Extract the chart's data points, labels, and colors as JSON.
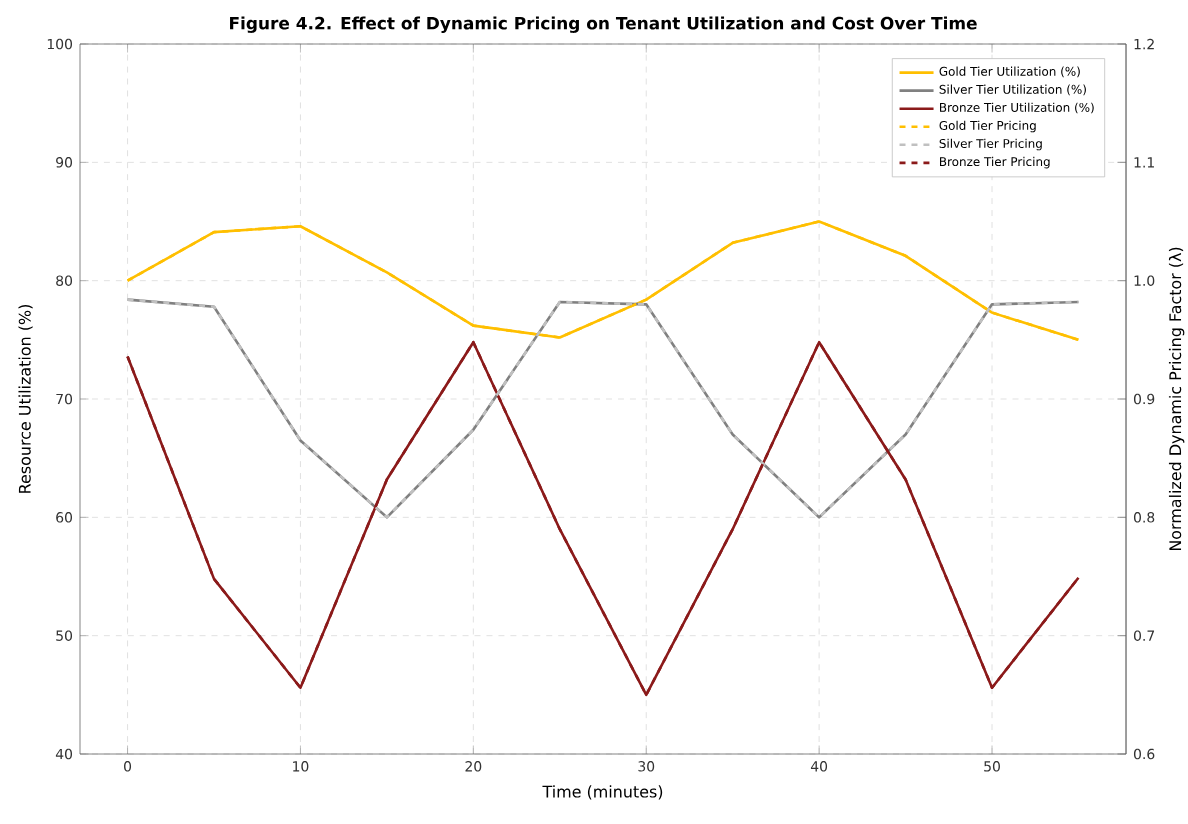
{
  "chart_data": {
    "type": "line",
    "title": "Figure 4.2. Effect of Dynamic Pricing on Tenant Utilization and Cost Over Time",
    "xlabel": "Time (minutes)",
    "ylabel": "Resource Utilization (%)",
    "y2label": "Normalized Dynamic Pricing Factor (λ)",
    "x": [
      0,
      5,
      10,
      15,
      20,
      25,
      30,
      35,
      40,
      45,
      50,
      55
    ],
    "xlim": [
      -2.75,
      57.75
    ],
    "xticks": [
      0,
      10,
      20,
      30,
      40,
      50
    ],
    "ylim": [
      40,
      100
    ],
    "yticks": [
      40,
      50,
      60,
      70,
      80,
      90,
      100
    ],
    "y2lim": [
      0.6,
      1.2
    ],
    "y2ticks": [
      0.6,
      0.7,
      0.8,
      0.9,
      {
        "value": 1.0,
        "label": "1.0"
      },
      1.1,
      1.2
    ],
    "grid": true,
    "legend": "top right",
    "series": [
      {
        "name": "Gold Tier Utilization (%)",
        "color": "#ffbf00",
        "line_style": "solid",
        "values": [
          80.0,
          84.1,
          84.6,
          80.7,
          76.2,
          75.2,
          78.4,
          83.2,
          85.0,
          82.1,
          77.3,
          75.0
        ]
      },
      {
        "name": "Silver Tier Utilization (%)",
        "color": "#808080",
        "line_style": "solid",
        "values": [
          78.4,
          77.8,
          66.5,
          60.0,
          67.4,
          78.2,
          78.0,
          67.0,
          60.0,
          67.0,
          78.0,
          78.2
        ]
      },
      {
        "name": "Bronze Tier Utilization (%)",
        "color": "#8b1a1a",
        "line_style": "solid",
        "values": [
          73.6,
          54.8,
          45.6,
          63.2,
          74.8,
          59.0,
          45.0,
          59.0,
          74.8,
          63.2,
          45.6,
          54.9
        ]
      },
      {
        "name": "Gold Tier Pricing",
        "color": "#ffbf00",
        "line_style": "dashed",
        "axis": "y2",
        "values": [
          1.0,
          1.041,
          1.046,
          1.007,
          0.962,
          0.952,
          0.984,
          1.032,
          1.05,
          1.021,
          0.973,
          0.95
        ]
      },
      {
        "name": "Silver Tier Pricing",
        "color": "#c0c0c0",
        "line_style": "dashed",
        "axis": "y2",
        "values": [
          0.984,
          0.978,
          0.865,
          0.8,
          0.874,
          0.982,
          0.98,
          0.87,
          0.8,
          0.87,
          0.98,
          0.982
        ]
      },
      {
        "name": "Bronze Tier Pricing",
        "color": "#8b1a1a",
        "line_style": "dashed",
        "axis": "y2",
        "values": [
          0.936,
          0.748,
          0.656,
          0.832,
          0.948,
          0.79,
          0.65,
          0.79,
          0.948,
          0.832,
          0.656,
          0.749
        ]
      }
    ]
  }
}
